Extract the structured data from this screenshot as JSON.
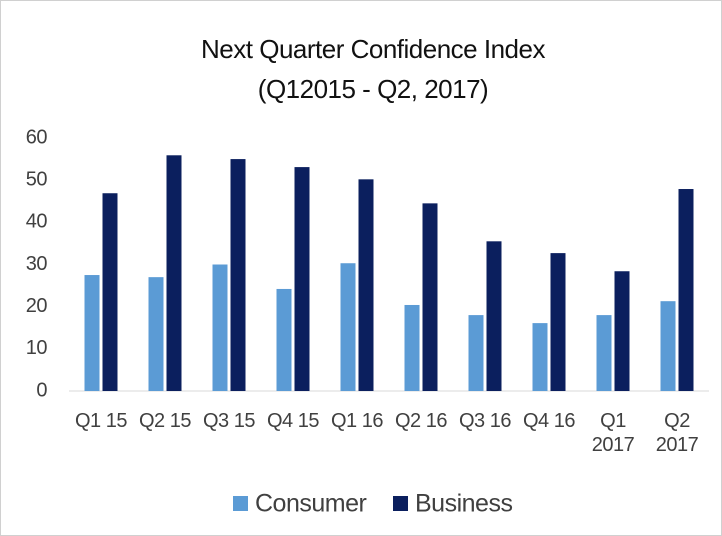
{
  "chart_data": {
    "type": "bar",
    "title": "Next Quarter Confidence Index",
    "subtitle": "(Q12015  - Q2, 2017)",
    "categories": [
      "Q1 15",
      "Q2 15",
      "Q3 15",
      "Q4 15",
      "Q1 16",
      "Q2 16",
      "Q3 16",
      "Q4 16",
      "Q1 2017",
      "Q2 2017"
    ],
    "series": [
      {
        "name": "Consumer",
        "color": "#5b9bd5",
        "values": [
          27.5,
          27,
          30,
          24.2,
          30.3,
          20.4,
          18,
          16.1,
          18,
          21.3
        ]
      },
      {
        "name": "Business",
        "color": "#0b1f5e",
        "values": [
          46.9,
          55.9,
          55,
          53.1,
          50.2,
          44.5,
          35.5,
          32.7,
          28.4,
          47.9
        ]
      }
    ],
    "ylim": [
      0,
      60
    ],
    "yticks": [
      0,
      10,
      20,
      30,
      40,
      50,
      60
    ],
    "grid": false,
    "legend": "bottom"
  }
}
